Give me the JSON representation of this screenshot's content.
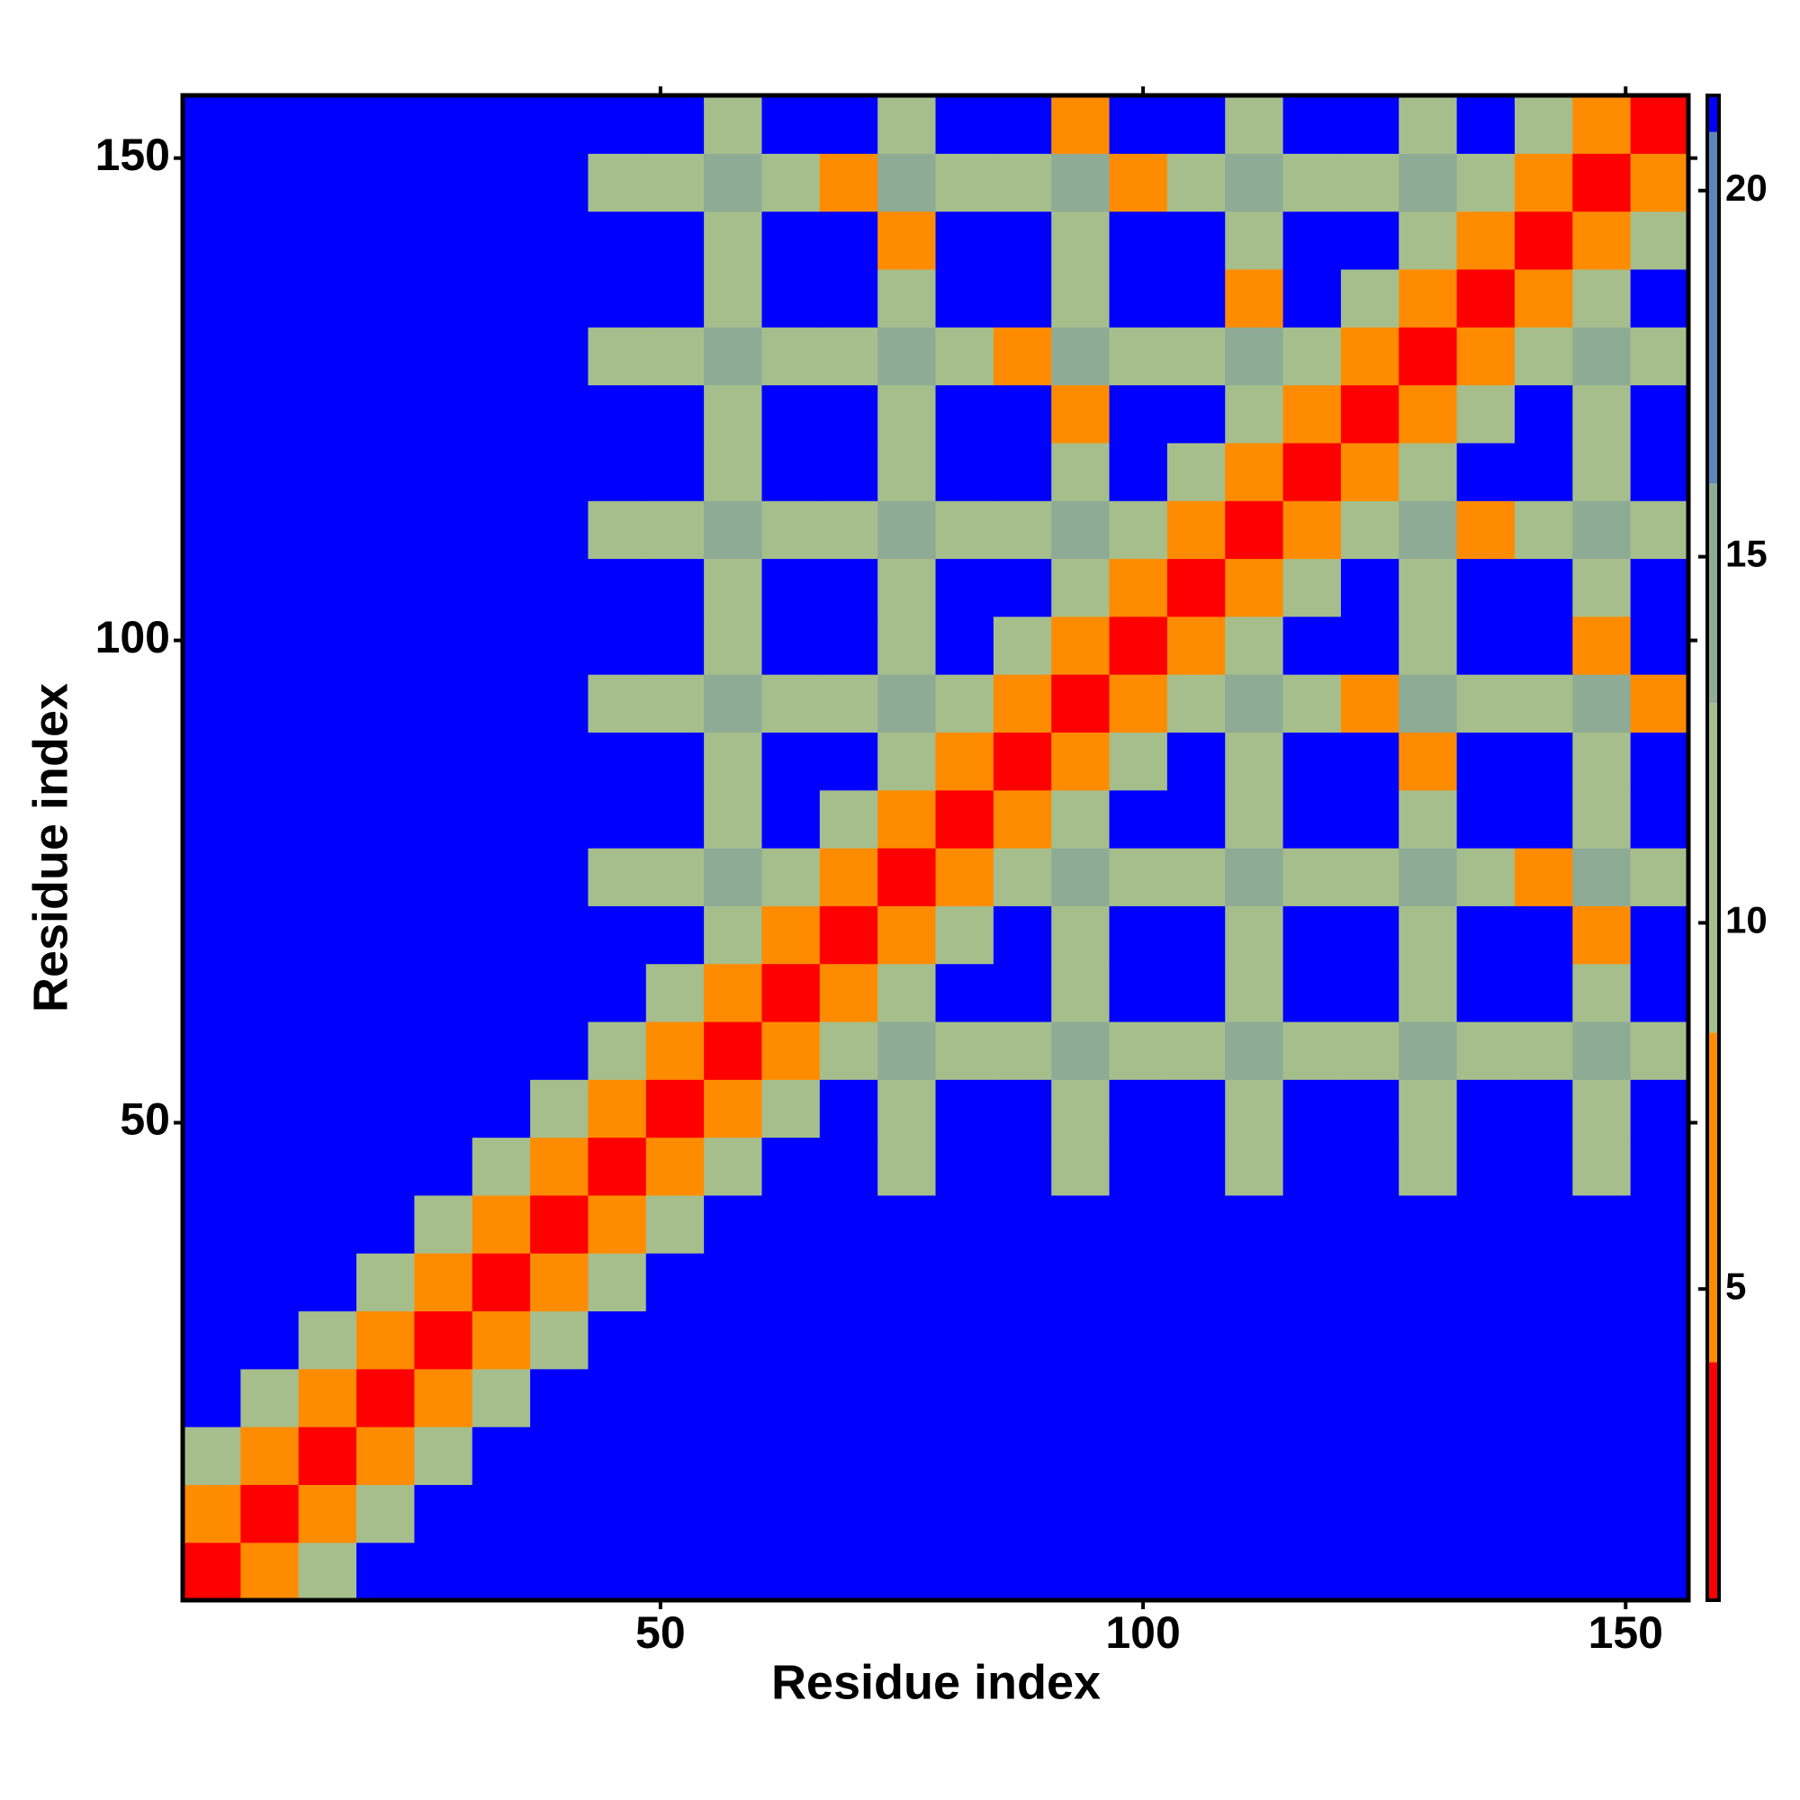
{
  "chart_data": {
    "type": "heatmap",
    "x_label": "Residue index",
    "y_label": "Residue index",
    "x_bins": [
      0.5,
      6.5,
      12.5,
      18.5,
      24.5,
      30.5,
      36.5,
      42.5,
      48.5,
      54.5,
      60.5,
      66.5,
      72.5,
      78.5,
      84.5,
      90.5,
      96.5,
      102.5,
      108.5,
      114.5,
      120.5,
      126.5,
      132.5,
      138.5,
      144.5,
      150.5,
      156.5
    ],
    "y_bins": [
      0.5,
      6.5,
      12.5,
      18.5,
      24.5,
      30.5,
      36.5,
      42.5,
      48.5,
      54.5,
      60.5,
      66.5,
      72.5,
      78.5,
      84.5,
      90.5,
      96.5,
      102.5,
      108.5,
      114.5,
      120.5,
      126.5,
      132.5,
      138.5,
      144.5,
      150.5,
      156.5
    ],
    "xlim": [
      0.5,
      156.5
    ],
    "ylim": [
      0.5,
      156.5
    ],
    "xticks": [
      50,
      100,
      150
    ],
    "yticks": [
      50,
      100,
      150
    ],
    "z": [
      [
        2,
        5,
        11,
        21,
        21,
        21,
        21,
        21,
        21,
        21,
        21,
        21,
        21,
        21,
        21,
        21,
        21,
        21,
        21,
        21,
        21,
        21,
        21,
        21,
        21,
        21
      ],
      [
        5,
        2,
        5,
        11,
        21,
        21,
        21,
        21,
        21,
        21,
        21,
        21,
        21,
        21,
        21,
        21,
        21,
        21,
        21,
        21,
        21,
        21,
        21,
        21,
        21,
        21
      ],
      [
        11,
        5,
        2,
        5,
        11,
        21,
        21,
        21,
        21,
        21,
        21,
        21,
        21,
        21,
        21,
        21,
        21,
        21,
        21,
        21,
        21,
        21,
        21,
        21,
        21,
        21
      ],
      [
        21,
        11,
        5,
        2,
        5,
        11,
        21,
        21,
        21,
        21,
        21,
        21,
        21,
        21,
        21,
        21,
        21,
        21,
        21,
        21,
        21,
        21,
        21,
        21,
        21,
        21
      ],
      [
        21,
        21,
        11,
        5,
        2,
        5,
        11,
        21,
        21,
        21,
        21,
        21,
        21,
        21,
        21,
        21,
        21,
        21,
        21,
        21,
        21,
        21,
        21,
        21,
        21,
        21
      ],
      [
        21,
        21,
        21,
        11,
        5,
        2,
        5,
        11,
        21,
        21,
        21,
        21,
        21,
        21,
        21,
        21,
        21,
        21,
        21,
        21,
        21,
        21,
        21,
        21,
        21,
        21
      ],
      [
        21,
        21,
        21,
        21,
        11,
        5,
        2,
        5,
        11,
        21,
        21,
        21,
        21,
        21,
        21,
        21,
        21,
        21,
        21,
        21,
        21,
        21,
        21,
        21,
        21,
        21
      ],
      [
        21,
        21,
        21,
        21,
        21,
        11,
        5,
        2,
        5,
        11,
        21,
        21,
        13,
        21,
        21,
        13,
        21,
        21,
        13,
        21,
        21,
        13,
        21,
        21,
        13,
        21
      ],
      [
        21,
        21,
        21,
        21,
        21,
        21,
        11,
        5,
        2,
        5,
        11,
        21,
        13,
        21,
        21,
        13,
        21,
        21,
        13,
        21,
        21,
        13,
        21,
        21,
        13,
        21
      ],
      [
        21,
        21,
        21,
        21,
        21,
        21,
        21,
        11,
        5,
        2,
        5,
        11,
        15,
        13,
        13,
        15,
        13,
        13,
        15,
        13,
        13,
        15,
        13,
        13,
        15,
        13
      ],
      [
        21,
        21,
        21,
        21,
        21,
        21,
        21,
        21,
        11,
        5,
        2,
        5,
        11,
        21,
        21,
        13,
        21,
        21,
        13,
        21,
        21,
        13,
        21,
        21,
        13,
        21
      ],
      [
        21,
        21,
        21,
        21,
        21,
        21,
        21,
        21,
        21,
        11,
        5,
        2,
        5,
        11,
        21,
        13,
        21,
        21,
        13,
        21,
        21,
        13,
        21,
        21,
        7,
        21
      ],
      [
        21,
        21,
        21,
        21,
        21,
        21,
        21,
        13,
        13,
        15,
        11,
        5,
        2,
        5,
        11,
        15,
        13,
        13,
        15,
        13,
        13,
        15,
        13,
        7,
        15,
        13
      ],
      [
        21,
        21,
        21,
        21,
        21,
        21,
        21,
        21,
        21,
        13,
        21,
        11,
        5,
        2,
        5,
        11,
        21,
        21,
        13,
        21,
        21,
        13,
        21,
        21,
        13,
        21
      ],
      [
        21,
        21,
        21,
        21,
        21,
        21,
        21,
        21,
        21,
        13,
        21,
        21,
        11,
        5,
        2,
        5,
        11,
        21,
        13,
        21,
        21,
        7,
        21,
        21,
        13,
        21
      ],
      [
        21,
        21,
        21,
        21,
        21,
        21,
        21,
        13,
        13,
        15,
        13,
        13,
        15,
        11,
        5,
        2,
        5,
        11,
        15,
        13,
        7,
        15,
        13,
        13,
        15,
        7
      ],
      [
        21,
        21,
        21,
        21,
        21,
        21,
        21,
        21,
        21,
        13,
        21,
        21,
        13,
        21,
        11,
        5,
        2,
        5,
        11,
        21,
        21,
        13,
        21,
        21,
        7,
        21
      ],
      [
        21,
        21,
        21,
        21,
        21,
        21,
        21,
        21,
        21,
        13,
        21,
        21,
        13,
        21,
        21,
        11,
        5,
        2,
        5,
        11,
        21,
        13,
        21,
        21,
        13,
        21
      ],
      [
        21,
        21,
        21,
        21,
        21,
        21,
        21,
        13,
        13,
        15,
        13,
        13,
        15,
        13,
        13,
        15,
        11,
        5,
        2,
        5,
        11,
        15,
        7,
        13,
        15,
        13
      ],
      [
        21,
        21,
        21,
        21,
        21,
        21,
        21,
        21,
        21,
        13,
        21,
        21,
        13,
        21,
        21,
        13,
        21,
        11,
        5,
        2,
        5,
        11,
        21,
        21,
        13,
        21
      ],
      [
        21,
        21,
        21,
        21,
        21,
        21,
        21,
        21,
        21,
        13,
        21,
        21,
        13,
        21,
        21,
        7,
        21,
        21,
        11,
        5,
        2,
        5,
        11,
        21,
        13,
        21
      ],
      [
        21,
        21,
        21,
        21,
        21,
        21,
        21,
        13,
        13,
        15,
        13,
        13,
        15,
        13,
        7,
        15,
        13,
        13,
        15,
        11,
        5,
        2,
        5,
        11,
        15,
        13
      ],
      [
        21,
        21,
        21,
        21,
        21,
        21,
        21,
        21,
        21,
        13,
        21,
        21,
        13,
        21,
        21,
        13,
        21,
        21,
        7,
        21,
        11,
        5,
        2,
        5,
        11,
        21
      ],
      [
        21,
        21,
        21,
        21,
        21,
        21,
        21,
        21,
        21,
        13,
        21,
        21,
        7,
        21,
        21,
        13,
        21,
        21,
        13,
        21,
        21,
        11,
        5,
        2,
        5,
        11
      ],
      [
        21,
        21,
        21,
        21,
        21,
        21,
        21,
        13,
        13,
        15,
        13,
        7,
        15,
        13,
        13,
        15,
        7,
        13,
        15,
        13,
        13,
        15,
        11,
        5,
        2,
        5
      ],
      [
        21,
        21,
        21,
        21,
        21,
        21,
        21,
        21,
        21,
        13,
        21,
        21,
        13,
        21,
        21,
        7,
        21,
        21,
        13,
        21,
        21,
        13,
        21,
        11,
        5,
        2
      ]
    ],
    "color_scale": [
      {
        "max": 4,
        "color": "#ff0000"
      },
      {
        "max": 8.5,
        "color": "#ff8c00"
      },
      {
        "max": 13,
        "color": "#a6be8b"
      },
      {
        "max": 16,
        "color": "#8eab95"
      },
      {
        "max": 20.8,
        "color": "#5d86b9"
      },
      {
        "max": 21.3,
        "color": "#0000ff"
      }
    ],
    "colorbar_lim": [
      0.75,
      21.3
    ],
    "colorbar_ticks": [
      5,
      10,
      15,
      20
    ]
  }
}
